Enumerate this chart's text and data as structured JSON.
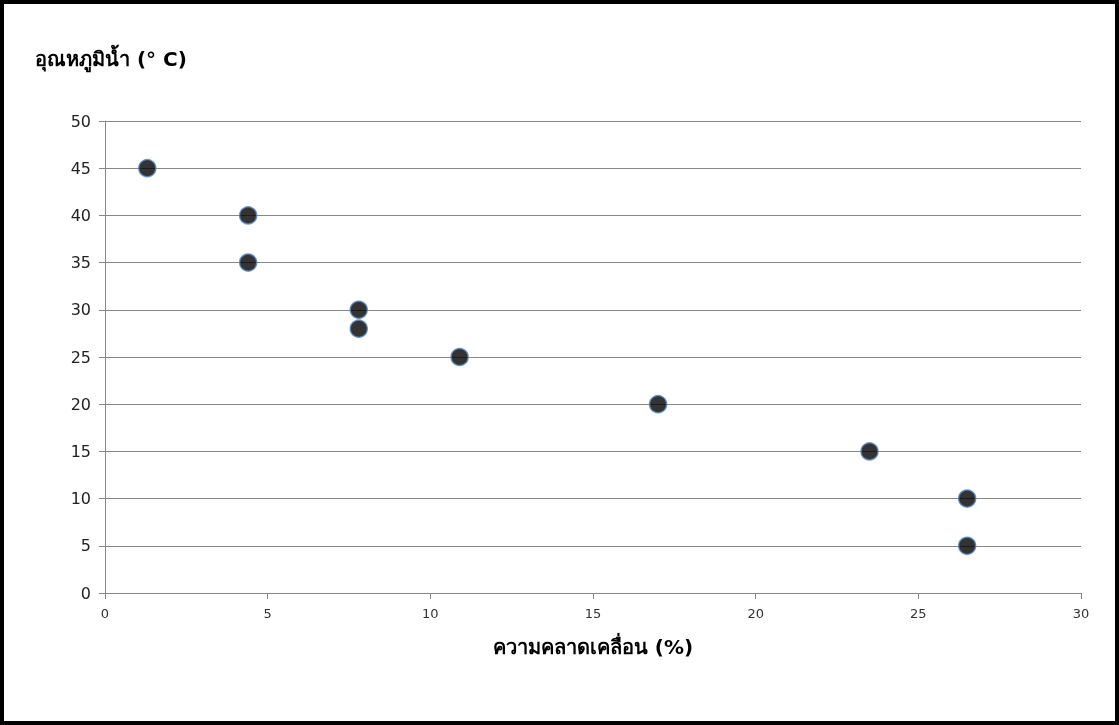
{
  "chart_data": {
    "type": "scatter",
    "ylabel": "อุณหภูมิน้ำ (° C)",
    "xlabel": "ความคลาดเคลื่อน (%)",
    "x": [
      1.3,
      4.4,
      4.4,
      7.8,
      7.8,
      10.9,
      17,
      23.5,
      26.5,
      26.5
    ],
    "series": [
      {
        "color": "#000000",
        "values": [
          45,
          40,
          35,
          30,
          28,
          25,
          20,
          15,
          10,
          5
        ]
      }
    ],
    "xlim": [
      0,
      30
    ],
    "xticks": [
      0,
      5,
      10,
      15,
      20,
      25,
      30
    ],
    "ylim": [
      0,
      50
    ],
    "yticks": [
      0,
      5,
      10,
      15,
      20,
      25,
      30,
      35,
      40,
      45,
      50
    ],
    "grid": "y",
    "marker": "circle"
  }
}
